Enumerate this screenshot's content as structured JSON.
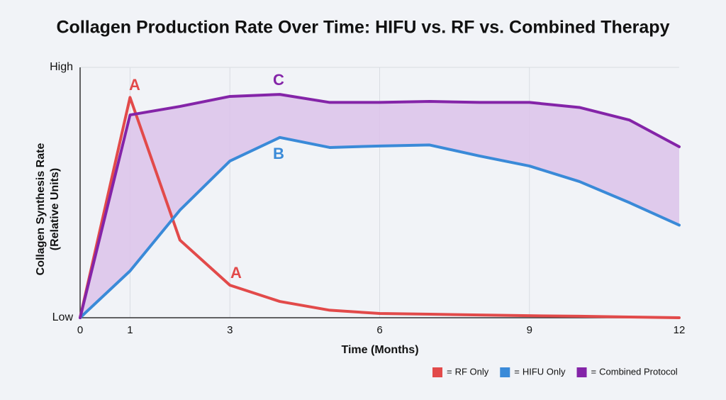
{
  "chart_data": {
    "type": "line",
    "title": "Collagen Production Rate Over Time: HIFU vs. RF vs. Combined Therapy",
    "xlabel": "Time (Months)",
    "ylabel": [
      "Collagen Synthesis Rate",
      "(Relative Units)"
    ],
    "x": [
      0,
      1,
      2,
      3,
      4,
      5,
      6,
      7,
      8,
      9,
      10,
      11,
      12
    ],
    "xlim": [
      0,
      12
    ],
    "xticks": [
      0,
      1,
      3,
      6,
      9,
      12
    ],
    "ylim": [
      0,
      100
    ],
    "yticks": [
      {
        "value": 0,
        "label": "Low"
      },
      {
        "value": 100,
        "label": "High"
      }
    ],
    "grid": true,
    "fill_between": {
      "upper": 2,
      "lower": 1,
      "color": "#dcc2ea"
    },
    "series": [
      {
        "name": "RF Only",
        "color": "#e24a4a",
        "values": [
          0,
          88,
          31,
          13,
          6.5,
          3,
          1.7,
          1.4,
          1.1,
          0.8,
          0.6,
          0.3,
          0
        ]
      },
      {
        "name": "HIFU Only",
        "color": "#3a8ad8",
        "values": [
          0,
          18.7,
          43,
          62.6,
          72,
          68,
          68.6,
          69,
          64.6,
          60.6,
          54.4,
          46,
          37
        ]
      },
      {
        "name": "Combined Protocol",
        "color": "#8424a8",
        "values": [
          0,
          81,
          84.4,
          88.4,
          89.2,
          86,
          86,
          86.4,
          86,
          86,
          84,
          79,
          68.3
        ]
      }
    ],
    "annotations": [
      {
        "text": "A",
        "color": "#e24a4a"
      },
      {
        "text": "A",
        "color": "#e24a4a"
      },
      {
        "text": "B",
        "color": "#3a8ad8"
      },
      {
        "text": "C",
        "color": "#8424a8"
      }
    ],
    "legend_prefix": "=",
    "legend": "bottom-right"
  }
}
